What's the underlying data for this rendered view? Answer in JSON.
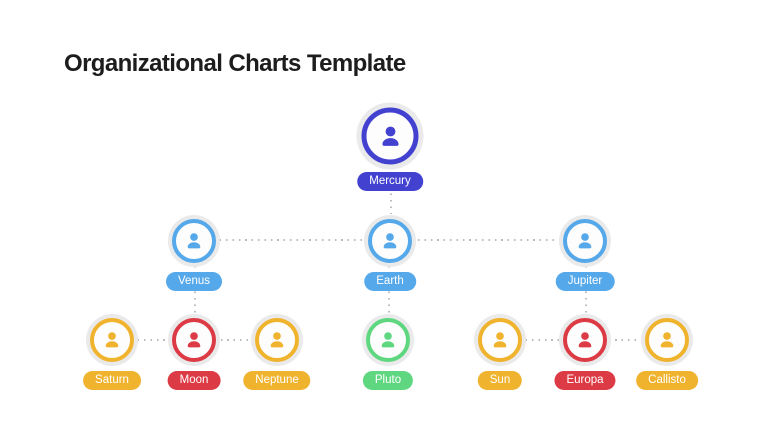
{
  "slide": {
    "title": "Organizational Charts Template"
  },
  "palette": {
    "indigo": "#4341d0",
    "blue": "#55a8e9",
    "yellow": "#f0b32e",
    "red": "#dc3a45",
    "green": "#5fd781",
    "halo": "#eaeaea",
    "line": "#b9bdbd",
    "title_text": "#1d1d1d",
    "label_text": "#ffffff"
  },
  "org_chart": {
    "icon": "person-icon",
    "nodes": [
      {
        "id": "mercury",
        "label": "Mercury",
        "color": "indigo",
        "level": 1,
        "parent": null
      },
      {
        "id": "venus",
        "label": "Venus",
        "color": "blue",
        "level": 2,
        "parent": "mercury"
      },
      {
        "id": "earth",
        "label": "Earth",
        "color": "blue",
        "level": 2,
        "parent": "mercury"
      },
      {
        "id": "jupiter",
        "label": "Jupiter",
        "color": "blue",
        "level": 2,
        "parent": "mercury"
      },
      {
        "id": "saturn",
        "label": "Saturn",
        "color": "yellow",
        "level": 3,
        "parent": "venus"
      },
      {
        "id": "moon",
        "label": "Moon",
        "color": "red",
        "level": 3,
        "parent": "venus"
      },
      {
        "id": "neptune",
        "label": "Neptune",
        "color": "yellow",
        "level": 3,
        "parent": "venus"
      },
      {
        "id": "pluto",
        "label": "Pluto",
        "color": "green",
        "level": 3,
        "parent": "earth"
      },
      {
        "id": "sun",
        "label": "Sun",
        "color": "yellow",
        "level": 3,
        "parent": "jupiter"
      },
      {
        "id": "europa",
        "label": "Europa",
        "color": "red",
        "level": 3,
        "parent": "jupiter"
      },
      {
        "id": "callisto",
        "label": "Callisto",
        "color": "yellow",
        "level": 3,
        "parent": "jupiter"
      }
    ]
  }
}
